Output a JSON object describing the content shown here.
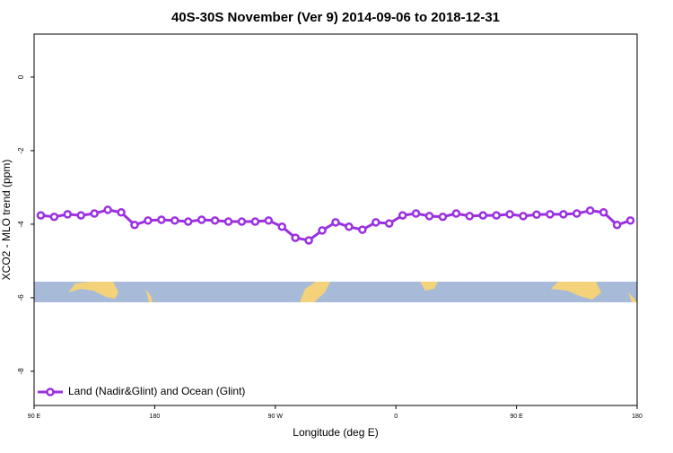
{
  "chart_data": {
    "type": "line",
    "title": "40S-30S November (Ver 9)   2014-09-06 to 2018-12-31",
    "x_label": "Longitude (deg E)",
    "y_label": "XCO2 - MLO trend (ppm)",
    "x": [
      95,
      105,
      115,
      125,
      135,
      145,
      155,
      165,
      175,
      185,
      195,
      205,
      215,
      225,
      235,
      245,
      255,
      265,
      275,
      285,
      295,
      305,
      315,
      325,
      335,
      345,
      355,
      365,
      375,
      385,
      395,
      405,
      415,
      425,
      435,
      445,
      455,
      465,
      475,
      485,
      495,
      505,
      515,
      525,
      535
    ],
    "series": [
      {
        "name": "Land (Nadir&Glint) and Ocean (Glint)",
        "color": "#9b30e0",
        "values": [
          -3.76,
          -3.8,
          -3.73,
          -3.76,
          -3.71,
          -3.61,
          -3.68,
          -4.02,
          -3.9,
          -3.88,
          -3.9,
          -3.93,
          -3.88,
          -3.9,
          -3.93,
          -3.93,
          -3.93,
          -3.9,
          -4.07,
          -4.37,
          -4.44,
          -4.17,
          -3.95,
          -4.07,
          -4.15,
          -3.95,
          -3.98,
          -3.76,
          -3.71,
          -3.78,
          -3.8,
          -3.71,
          -3.78,
          -3.76,
          -3.76,
          -3.73,
          -3.78,
          -3.74,
          -3.73,
          -3.73,
          -3.71,
          -3.63,
          -3.68,
          -4.02,
          -3.9
        ]
      }
    ],
    "xlim": [
      90,
      540
    ],
    "xticks": [
      {
        "value": 90,
        "label": "90 E"
      },
      180,
      {
        "value": 270,
        "label": "90 W"
      },
      {
        "value": 360,
        "label": "0"
      },
      {
        "value": 450,
        "label": "90 E"
      },
      {
        "value": 540,
        "label": "180"
      }
    ],
    "ylim": [
      -8.93,
      1.17
    ],
    "yticks": [
      0,
      -2,
      -4,
      -6,
      -8
    ],
    "legend": "bottom-left"
  }
}
